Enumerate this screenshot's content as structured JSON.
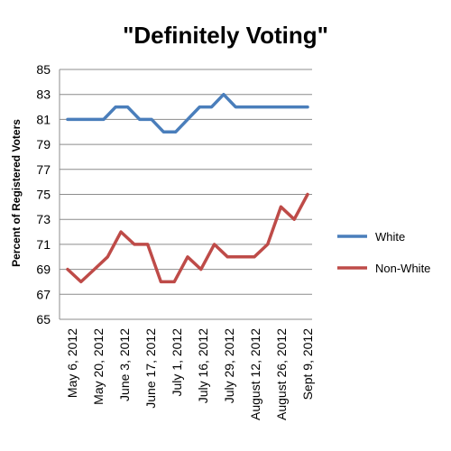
{
  "chart_data": {
    "type": "line",
    "title": "\"Definitely Voting\"",
    "xlabel": "",
    "ylabel": "Percent of Registered Voters",
    "ylim": [
      65,
      85
    ],
    "y_ticks": [
      65,
      67,
      69,
      71,
      73,
      75,
      77,
      79,
      81,
      83,
      85
    ],
    "y_tick_labels": [
      "65",
      "67",
      "69",
      "71",
      "73",
      "75",
      "77",
      "79",
      "81",
      "83",
      "85"
    ],
    "x_tick_labels": [
      "May 6, 2012",
      "May 20, 2012",
      "June 3, 2012",
      "June 17, 2012",
      "July 1, 2012",
      "July 16, 2012",
      "July 29, 2012",
      "August 12, 2012",
      "August 26, 2012",
      "Sept 9, 2012"
    ],
    "grid": true,
    "legend_position": "right",
    "series": [
      {
        "name": "White",
        "color": "#4a7ebb",
        "values": [
          81,
          81,
          81,
          81,
          82,
          82,
          81,
          81,
          80,
          80,
          81,
          82,
          82,
          83,
          82,
          82,
          82,
          82,
          82,
          82,
          82
        ]
      },
      {
        "name": "Non-White",
        "color": "#be4b48",
        "values": [
          69,
          68,
          69,
          70,
          72,
          71,
          71,
          68,
          68,
          70,
          69,
          71,
          70,
          70,
          70,
          71,
          74,
          73,
          75
        ]
      }
    ]
  }
}
